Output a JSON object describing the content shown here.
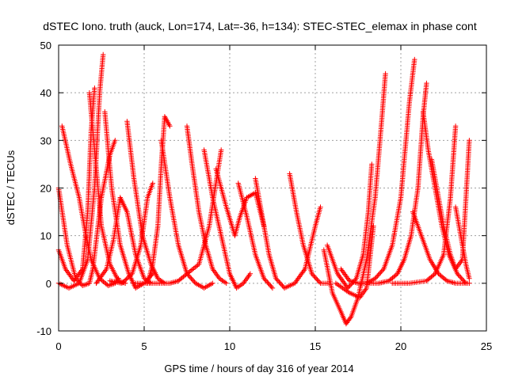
{
  "chart_data": {
    "type": "scatter",
    "title": "dSTEC Iono. truth (auck, Lon=174, Lat=-36, h=134): STEC-STEC_elemax in phase cont",
    "xlabel": "GPS time / hours of day 316 of year 2014",
    "ylabel": "dSTEC  / TECUs",
    "xlim": [
      0,
      25
    ],
    "ylim": [
      -10,
      50
    ],
    "xticks": [
      0,
      5,
      10,
      15,
      20,
      25
    ],
    "yticks": [
      -10,
      0,
      10,
      20,
      30,
      40,
      50
    ],
    "grid": true,
    "marker": "plus",
    "series_color": "#ff0000",
    "series": [
      {
        "x": [
          0.0,
          0.5,
          1.0,
          1.4,
          1.8,
          2.0,
          2.2,
          2.5,
          3.0,
          3.3
        ],
        "y": [
          20,
          8,
          1,
          -0.5,
          0,
          3,
          9,
          18,
          27,
          30
        ]
      },
      {
        "x": [
          0.2,
          0.7,
          1.2,
          1.6,
          1.9,
          2.4,
          2.9,
          3.3,
          3.5
        ],
        "y": [
          33,
          25,
          18,
          10,
          5,
          1,
          -0.5,
          0,
          1
        ]
      },
      {
        "x": [
          0.0,
          0.4,
          0.9,
          1.4,
          1.7,
          1.9,
          2.1
        ],
        "y": [
          7,
          3,
          0.5,
          3,
          15,
          32,
          41
        ]
      },
      {
        "x": [
          1.8,
          2.1,
          2.5,
          3.0,
          3.5,
          3.9
        ],
        "y": [
          40,
          28,
          12,
          4,
          0.5,
          0
        ]
      },
      {
        "x": [
          0.0,
          0.6,
          1.2,
          1.7,
          2.1,
          2.4,
          2.6
        ],
        "y": [
          0,
          -1,
          0,
          5,
          20,
          40,
          48
        ]
      },
      {
        "x": [
          2.7,
          3.1,
          3.6,
          4.1,
          4.5,
          5.0,
          5.5
        ],
        "y": [
          36,
          20,
          8,
          2,
          -1,
          0,
          2
        ]
      },
      {
        "x": [
          2.2,
          2.8,
          3.2,
          3.6,
          4.0,
          4.5,
          5.0,
          5.4
        ],
        "y": [
          0,
          3,
          9,
          18,
          15,
          6,
          1,
          0
        ]
      },
      {
        "x": [
          4.0,
          4.4,
          4.9,
          5.4,
          5.8,
          6.2
        ],
        "y": [
          34,
          22,
          10,
          4,
          1,
          0
        ]
      },
      {
        "x": [
          3.0,
          3.7,
          4.3,
          4.8,
          5.2,
          5.5
        ],
        "y": [
          0.5,
          0,
          2,
          8,
          18,
          21
        ]
      },
      {
        "x": [
          5.2,
          5.5,
          5.8,
          6.0,
          6.2,
          6.5
        ],
        "y": [
          0,
          4,
          12,
          25,
          35,
          33
        ]
      },
      {
        "x": [
          4.5,
          5.0,
          5.5,
          6.0,
          6.5,
          7.0,
          7.5,
          8.2,
          8.8,
          9.5
        ],
        "y": [
          0,
          0,
          0,
          0,
          0,
          0.5,
          2,
          4,
          12,
          28
        ]
      },
      {
        "x": [
          6.0,
          6.5,
          7.0,
          7.5,
          8.0,
          8.5,
          9.0
        ],
        "y": [
          30,
          18,
          8,
          2,
          0,
          -1,
          0
        ]
      },
      {
        "x": [
          7.5,
          7.8,
          8.2,
          8.6,
          9.0,
          9.4,
          9.8
        ],
        "y": [
          33,
          25,
          15,
          8,
          3,
          1,
          0
        ]
      },
      {
        "x": [
          8.5,
          9.0,
          9.5,
          10.0,
          10.4,
          10.8,
          11.2
        ],
        "y": [
          28,
          18,
          10,
          2,
          -1,
          0,
          2
        ]
      },
      {
        "x": [
          9.2,
          9.8,
          10.3,
          10.6,
          11.0,
          11.5,
          12.0
        ],
        "y": [
          24,
          16,
          10,
          14,
          18,
          19,
          12
        ]
      },
      {
        "x": [
          10.5,
          11.0,
          11.5,
          12.0,
          12.5
        ],
        "y": [
          21,
          14,
          6,
          1,
          -1
        ]
      },
      {
        "x": [
          11.5,
          11.9,
          12.3,
          12.7,
          13.2,
          13.8,
          14.4,
          15.0,
          15.3
        ],
        "y": [
          22,
          14,
          6,
          1,
          -1,
          0,
          3,
          12,
          16
        ]
      },
      {
        "x": [
          13.5,
          13.9,
          14.3,
          14.8,
          15.3,
          15.8
        ],
        "y": [
          23,
          15,
          8,
          2,
          0,
          0
        ]
      },
      {
        "x": [
          15.5,
          16.0,
          16.5,
          16.8,
          17.1,
          17.5,
          18.0,
          18.5,
          18.9,
          19.1
        ],
        "y": [
          7,
          -2,
          -6,
          -8.5,
          -7,
          -3,
          5,
          18,
          35,
          44
        ]
      },
      {
        "x": [
          15.7,
          16.3,
          16.9,
          17.4,
          17.8,
          18.1,
          18.3
        ],
        "y": [
          8,
          2,
          -1,
          1,
          6,
          15,
          25
        ]
      },
      {
        "x": [
          16.5,
          17.0,
          17.5,
          18.0,
          18.5,
          19.0,
          19.5,
          20.0,
          20.5,
          20.8
        ],
        "y": [
          3,
          0.5,
          0,
          0,
          1,
          3,
          8,
          18,
          38,
          47
        ]
      },
      {
        "x": [
          16.2,
          17.0,
          17.6,
          18.0,
          18.4
        ],
        "y": [
          0,
          -2,
          -3,
          -1,
          12
        ]
      },
      {
        "x": [
          18.0,
          18.7,
          19.3,
          19.8,
          20.2,
          20.6,
          21.0,
          21.3,
          21.5
        ],
        "y": [
          0,
          0,
          0.5,
          2,
          5,
          10,
          20,
          35,
          42
        ]
      },
      {
        "x": [
          21.3,
          21.6,
          22.0,
          22.4,
          22.8,
          23.3,
          23.8
        ],
        "y": [
          36,
          28,
          20,
          12,
          6,
          2,
          0
        ]
      },
      {
        "x": [
          20.7,
          21.2,
          21.7,
          22.2,
          22.7,
          23.2,
          23.7,
          24.0
        ],
        "y": [
          15,
          10,
          5,
          2,
          0.5,
          0,
          0,
          0
        ]
      },
      {
        "x": [
          21.8,
          22.1,
          22.5,
          22.9,
          23.2,
          23.6,
          24.0
        ],
        "y": [
          26,
          20,
          12,
          6,
          3,
          5,
          30
        ]
      },
      {
        "x": [
          19.5,
          20.5,
          21.5,
          22.0,
          22.5,
          22.9,
          23.2
        ],
        "y": [
          0,
          0,
          0.5,
          2,
          6,
          18,
          33
        ]
      },
      {
        "x": [
          23.2,
          23.5,
          23.8,
          24.0
        ],
        "y": [
          16,
          10,
          4,
          1
        ]
      }
    ]
  }
}
